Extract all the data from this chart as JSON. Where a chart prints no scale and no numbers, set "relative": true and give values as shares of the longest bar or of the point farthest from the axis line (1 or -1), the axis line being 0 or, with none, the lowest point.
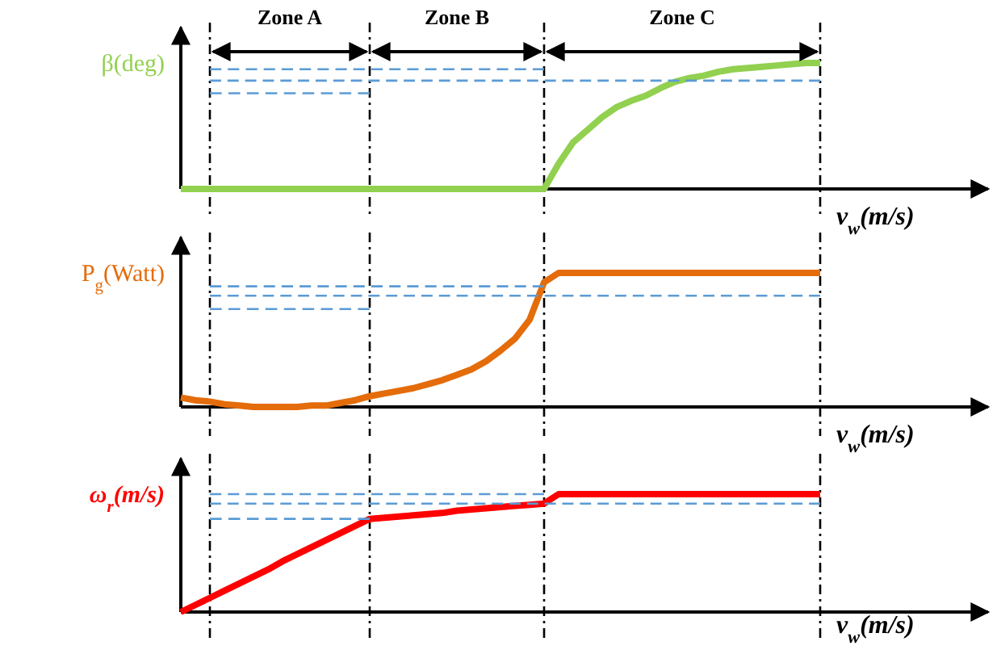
{
  "chart_data": [
    {
      "type": "line",
      "relative": true,
      "grid": "x",
      "ylabel": "β(deg)",
      "xlabel": "v$_{w}$(m/s)",
      "categories": [
        null,
        null,
        null,
        null,
        null,
        null,
        null,
        null,
        null,
        null,
        null,
        null,
        null,
        null,
        null,
        null,
        null,
        null,
        null,
        null,
        null,
        null,
        null,
        null,
        null,
        null,
        null,
        null,
        null,
        null,
        null,
        null,
        null,
        null,
        null,
        null,
        null,
        null,
        null,
        null,
        null,
        null,
        null,
        null,
        null
      ],
      "series": [
        {
          "color": "#92d050",
          "line_style": "solid",
          "values": [
            0,
            0,
            0,
            0,
            0,
            0,
            0,
            0,
            0,
            0,
            0,
            0,
            0,
            0,
            0,
            0,
            0,
            0,
            0,
            0,
            0,
            0,
            0,
            0,
            0,
            0,
            0.2,
            0.37,
            0.47,
            0.57,
            0.65,
            0.7,
            0.74,
            0.8,
            0.85,
            0.88,
            0.9,
            0.93,
            0.95,
            0.96,
            0.97,
            0.98,
            0.99,
            1,
            1
          ]
        },
        {
          "color": "#5b9bd5",
          "line_style": "dashed",
          "values": [
            null,
            null,
            0.95,
            0.95,
            0.95,
            0.95,
            0.95,
            0.95,
            0.95,
            0.95,
            0.95,
            0.95,
            0.95,
            0.95,
            0.95,
            0.95,
            0.95,
            0.95,
            0.95,
            0.95,
            0.95,
            0.95,
            0.95,
            0.95,
            0.95,
            0.95,
            null,
            null,
            null,
            null,
            null,
            null,
            null,
            null,
            null,
            null,
            null,
            null,
            null,
            null,
            null,
            null,
            null,
            null,
            null
          ]
        },
        {
          "color": "#5b9bd5",
          "line_style": "dashed",
          "values": [
            null,
            null,
            0.86,
            0.86,
            0.86,
            0.86,
            0.86,
            0.86,
            0.86,
            0.86,
            0.86,
            0.86,
            0.86,
            0.86,
            0.86,
            0.86,
            0.86,
            0.86,
            0.86,
            0.86,
            0.86,
            0.86,
            0.86,
            0.86,
            0.86,
            0.86,
            0.86,
            0.86,
            0.86,
            0.86,
            0.86,
            0.86,
            0.86,
            0.86,
            0.86,
            0.86,
            0.86,
            0.86,
            0.86,
            0.86,
            0.86,
            0.86,
            0.86,
            0.86,
            0.86
          ]
        },
        {
          "color": "#5b9bd5",
          "line_style": "dashed",
          "values": [
            null,
            null,
            0.76,
            0.76,
            0.76,
            0.76,
            0.76,
            0.76,
            0.76,
            0.76,
            0.76,
            0.76,
            0.76,
            0.76,
            null,
            null,
            null,
            null,
            null,
            null,
            null,
            null,
            null,
            null,
            null,
            null,
            null,
            null,
            null,
            null,
            null,
            null,
            null,
            null,
            null,
            null,
            null,
            null,
            null,
            null,
            null,
            null,
            null,
            null,
            null
          ]
        }
      ],
      "annotations": [
        "Zone A",
        "Zone B",
        "Zone C"
      ]
    },
    {
      "type": "line",
      "relative": true,
      "grid": "x",
      "ylabel": "P$_{g}$(Watt)",
      "xlabel": "v$_{w}$(m/s)",
      "categories": [
        null,
        null,
        null,
        null,
        null,
        null,
        null,
        null,
        null,
        null,
        null,
        null,
        null,
        null,
        null,
        null,
        null,
        null,
        null,
        null,
        null,
        null,
        null,
        null,
        null,
        null,
        null,
        null,
        null,
        null,
        null,
        null,
        null,
        null,
        null,
        null,
        null,
        null,
        null,
        null,
        null,
        null,
        null,
        null,
        null
      ],
      "series": [
        {
          "color": "#e46c0a",
          "line_style": "solid",
          "values": [
            0.07,
            0.05,
            0.04,
            0.02,
            0.01,
            0,
            0,
            0,
            0,
            0.01,
            0.01,
            0.03,
            0.05,
            0.08,
            0.1,
            0.12,
            0.14,
            0.17,
            0.2,
            0.24,
            0.28,
            0.34,
            0.42,
            0.51,
            0.65,
            0.93,
            1,
            1,
            1,
            1,
            1,
            1,
            1,
            1,
            1,
            1,
            1,
            1,
            1,
            1,
            1,
            1,
            1,
            1,
            1
          ]
        },
        {
          "color": "#5b9bd5",
          "line_style": "dashed",
          "values": [
            null,
            null,
            0.9,
            0.9,
            0.9,
            0.9,
            0.9,
            0.9,
            0.9,
            0.9,
            0.9,
            0.9,
            0.9,
            0.9,
            0.9,
            0.9,
            0.9,
            0.9,
            0.9,
            0.9,
            0.9,
            0.9,
            0.9,
            0.9,
            0.9,
            0.9,
            null,
            null,
            null,
            null,
            null,
            null,
            null,
            null,
            null,
            null,
            null,
            null,
            null,
            null,
            null,
            null,
            null,
            null,
            null
          ]
        },
        {
          "color": "#5b9bd5",
          "line_style": "dashed",
          "values": [
            null,
            null,
            0.83,
            0.83,
            0.83,
            0.83,
            0.83,
            0.83,
            0.83,
            0.83,
            0.83,
            0.83,
            0.83,
            0.83,
            0.83,
            0.83,
            0.83,
            0.83,
            0.83,
            0.83,
            0.83,
            0.83,
            0.83,
            0.83,
            0.83,
            0.83,
            0.83,
            0.83,
            0.83,
            0.83,
            0.83,
            0.83,
            0.83,
            0.83,
            0.83,
            0.83,
            0.83,
            0.83,
            0.83,
            0.83,
            0.83,
            0.83,
            0.83,
            0.83,
            0.83
          ]
        },
        {
          "color": "#5b9bd5",
          "line_style": "dashed",
          "values": [
            null,
            null,
            0.73,
            0.73,
            0.73,
            0.73,
            0.73,
            0.73,
            0.73,
            0.73,
            0.73,
            0.73,
            0.73,
            0.73,
            null,
            null,
            null,
            null,
            null,
            null,
            null,
            null,
            null,
            null,
            null,
            null,
            null,
            null,
            null,
            null,
            null,
            null,
            null,
            null,
            null,
            null,
            null,
            null,
            null,
            null,
            null,
            null,
            null,
            null,
            null
          ]
        }
      ]
    },
    {
      "type": "line",
      "relative": true,
      "grid": "x",
      "ylabel": "ω$_{r}$(m/s)",
      "xlabel": "v$_{w}$(m/s)",
      "categories": [
        null,
        null,
        null,
        null,
        null,
        null,
        null,
        null,
        null,
        null,
        null,
        null,
        null,
        null,
        null,
        null,
        null,
        null,
        null,
        null,
        null,
        null,
        null,
        null,
        null,
        null,
        null,
        null,
        null,
        null,
        null,
        null,
        null,
        null,
        null,
        null,
        null,
        null,
        null,
        null,
        null,
        null,
        null,
        null,
        null
      ],
      "series": [
        {
          "color": "#ff0000",
          "line_style": "solid",
          "values": [
            0,
            0.06,
            0.12,
            0.18,
            0.24,
            0.3,
            0.36,
            0.43,
            0.49,
            0.55,
            0.61,
            0.67,
            0.73,
            0.79,
            0.8,
            0.81,
            0.82,
            0.83,
            0.84,
            0.86,
            0.87,
            0.88,
            0.89,
            0.9,
            0.91,
            0.92,
            1,
            1,
            1,
            1,
            1,
            1,
            1,
            1,
            1,
            1,
            1,
            1,
            1,
            1,
            1,
            1,
            1,
            1,
            1
          ]
        },
        {
          "color": "#5b9bd5",
          "line_style": "dashed",
          "values": [
            null,
            null,
            1,
            1,
            1,
            1,
            1,
            1,
            1,
            1,
            1,
            1,
            1,
            1,
            1,
            1,
            1,
            1,
            1,
            1,
            1,
            1,
            1,
            1,
            1,
            1,
            null,
            null,
            null,
            null,
            null,
            null,
            null,
            null,
            null,
            null,
            null,
            null,
            null,
            null,
            null,
            null,
            null,
            null,
            null
          ]
        },
        {
          "color": "#5b9bd5",
          "line_style": "dashed",
          "values": [
            null,
            null,
            0.92,
            0.92,
            0.92,
            0.92,
            0.92,
            0.92,
            0.92,
            0.92,
            0.92,
            0.92,
            0.92,
            0.92,
            0.92,
            0.92,
            0.92,
            0.92,
            0.92,
            0.92,
            0.92,
            0.92,
            0.92,
            0.92,
            0.92,
            0.92,
            0.92,
            0.92,
            0.92,
            0.92,
            0.92,
            0.92,
            0.92,
            0.92,
            0.92,
            0.92,
            0.92,
            0.92,
            0.92,
            0.92,
            0.92,
            0.92,
            0.92,
            0.92,
            0.92
          ]
        },
        {
          "color": "#5b9bd5",
          "line_style": "dashed",
          "values": [
            null,
            null,
            0.79,
            0.79,
            0.79,
            0.79,
            0.79,
            0.79,
            0.79,
            0.79,
            0.79,
            0.79,
            0.79,
            0.79,
            null,
            null,
            null,
            null,
            null,
            null,
            null,
            null,
            null,
            null,
            null,
            null,
            null,
            null,
            null,
            null,
            null,
            null,
            null,
            null,
            null,
            null,
            null,
            null,
            null,
            null,
            null,
            null,
            null,
            null,
            null
          ]
        }
      ]
    }
  ]
}
